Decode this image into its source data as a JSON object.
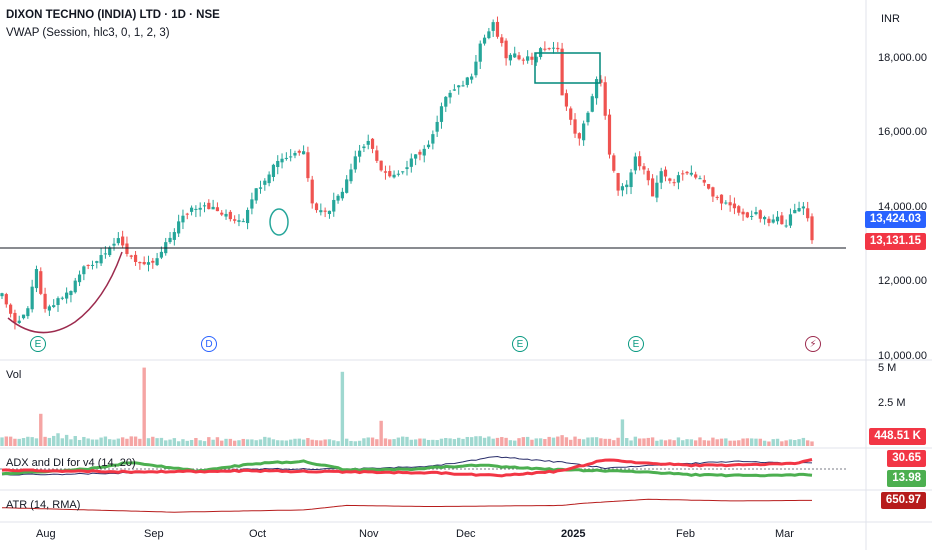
{
  "header": {
    "title": "DIXON TECHNO (INDIA) LTD · 1D · NSE",
    "indicator": "VWAP (Session, hlc3, 0, 1, 2, 3)",
    "currency": "INR"
  },
  "price_axis": {
    "ticks": [
      "18,000.00",
      "16,000.00",
      "14,000.00",
      "12,000.00",
      "10,000.00"
    ],
    "tick_values": [
      18000,
      16000,
      14000,
      12000,
      10000
    ],
    "current_price_label": "13,131.15",
    "vwap_label": "13,424.03",
    "up_color": "#26a69a",
    "down_color": "#ef5350"
  },
  "volume_pane": {
    "label": "Vol",
    "ticks": [
      "5 M",
      "2.5 M"
    ],
    "tick_values": [
      5000000,
      2500000
    ],
    "last_label": "448.51 K"
  },
  "adx_pane": {
    "label": "ADX and DI for v4 (14, 20)",
    "di_plus_label": "30.65",
    "di_minus_label": "13.98",
    "di_plus_color": "#f23645",
    "di_minus_color": "#4caf50",
    "adx_color": "#2a2e6a"
  },
  "atr_pane": {
    "label": "ATR (14, RMA)",
    "last_label": "650.97",
    "color": "#b71c1c"
  },
  "time_axis": {
    "labels": [
      "Aug",
      "Sep",
      "Oct",
      "Nov",
      "Dec",
      "2025",
      "Feb",
      "Mar"
    ]
  },
  "event_markers": [
    {
      "symbol": "E",
      "type": "earnings"
    },
    {
      "symbol": "D",
      "type": "dividend"
    },
    {
      "symbol": "E",
      "type": "earnings"
    },
    {
      "symbol": "E",
      "type": "earnings"
    },
    {
      "symbol": "⚡",
      "type": "split"
    }
  ],
  "chart_data": {
    "type": "candlestick",
    "title": "DIXON TECHNO (INDIA) LTD · 1D · NSE",
    "ylim": [
      10000,
      19300
    ],
    "support_level": 12920,
    "current_price": 13131.15,
    "vwap": 13424.03,
    "x_labels": [
      "Aug",
      "Sep",
      "Oct",
      "Nov",
      "Dec",
      "2025",
      "Feb",
      "Mar"
    ],
    "close_anchors": [
      [
        0,
        11700
      ],
      [
        3,
        10900
      ],
      [
        6,
        11300
      ],
      [
        8,
        12300
      ],
      [
        10,
        11200
      ],
      [
        13,
        11500
      ],
      [
        16,
        11800
      ],
      [
        19,
        12400
      ],
      [
        22,
        12600
      ],
      [
        25,
        13000
      ],
      [
        27,
        13100
      ],
      [
        29,
        12800
      ],
      [
        33,
        12400
      ],
      [
        36,
        12600
      ],
      [
        38,
        13000
      ],
      [
        41,
        13600
      ],
      [
        44,
        14000
      ],
      [
        47,
        14100
      ],
      [
        50,
        13900
      ],
      [
        53,
        13700
      ],
      [
        56,
        13700
      ],
      [
        58,
        14300
      ],
      [
        61,
        14800
      ],
      [
        64,
        15300
      ],
      [
        67,
        15400
      ],
      [
        70,
        15600
      ],
      [
        72,
        14100
      ],
      [
        74,
        13900
      ],
      [
        76,
        14000
      ],
      [
        79,
        14500
      ],
      [
        82,
        15400
      ],
      [
        85,
        15800
      ],
      [
        87,
        15200
      ],
      [
        90,
        14800
      ],
      [
        93,
        14900
      ],
      [
        95,
        15400
      ],
      [
        98,
        15500
      ],
      [
        101,
        16300
      ],
      [
        103,
        17000
      ],
      [
        106,
        17200
      ],
      [
        109,
        17600
      ],
      [
        111,
        18400
      ],
      [
        114,
        18900
      ],
      [
        115,
        18600
      ],
      [
        117,
        18050
      ],
      [
        120,
        18050
      ],
      [
        123,
        18000
      ],
      [
        126,
        18300
      ],
      [
        129,
        18200
      ],
      [
        130,
        17100
      ],
      [
        132,
        16300
      ],
      [
        134,
        15800
      ],
      [
        136,
        16600
      ],
      [
        138,
        17400
      ],
      [
        139,
        17300
      ],
      [
        141,
        15500
      ],
      [
        143,
        14400
      ],
      [
        145,
        14600
      ],
      [
        147,
        15300
      ],
      [
        149,
        15100
      ],
      [
        151,
        14300
      ],
      [
        153,
        14900
      ],
      [
        156,
        14700
      ],
      [
        159,
        15000
      ],
      [
        162,
        14800
      ],
      [
        165,
        14300
      ],
      [
        167,
        14200
      ],
      [
        169,
        14000
      ],
      [
        172,
        13800
      ],
      [
        175,
        13800
      ],
      [
        178,
        13600
      ],
      [
        180,
        13700
      ],
      [
        182,
        13600
      ],
      [
        184,
        13900
      ],
      [
        186,
        14100
      ],
      [
        188,
        13300
      ]
    ],
    "volume_anchors": [
      [
        0,
        0.6
      ],
      [
        10,
        0.8
      ],
      [
        20,
        0.5
      ],
      [
        30,
        0.6
      ],
      [
        40,
        0.45
      ],
      [
        50,
        0.5
      ],
      [
        60,
        0.5
      ],
      [
        70,
        0.55
      ],
      [
        80,
        0.45
      ],
      [
        90,
        0.55
      ],
      [
        100,
        0.5
      ],
      [
        110,
        0.55
      ],
      [
        120,
        0.5
      ],
      [
        130,
        0.6
      ],
      [
        140,
        0.55
      ],
      [
        150,
        0.5
      ],
      [
        160,
        0.5
      ],
      [
        170,
        0.45
      ],
      [
        180,
        0.45
      ],
      [
        188,
        0.45
      ]
    ],
    "volume_spikes": [
      [
        9,
        2.3
      ],
      [
        33,
        5.6
      ],
      [
        79,
        5.3
      ],
      [
        88,
        1.8
      ],
      [
        144,
        1.9
      ]
    ],
    "adx": [
      [
        0,
        14
      ],
      [
        20,
        15
      ],
      [
        40,
        17
      ],
      [
        60,
        20
      ],
      [
        80,
        20
      ],
      [
        100,
        23
      ],
      [
        115,
        33
      ],
      [
        130,
        27
      ],
      [
        140,
        21
      ],
      [
        155,
        25
      ],
      [
        170,
        28
      ],
      [
        185,
        26
      ],
      [
        188,
        27
      ]
    ],
    "di_plus": [
      [
        0,
        19
      ],
      [
        30,
        17
      ],
      [
        60,
        18
      ],
      [
        80,
        17
      ],
      [
        100,
        16
      ],
      [
        115,
        13
      ],
      [
        130,
        18
      ],
      [
        140,
        30
      ],
      [
        150,
        26
      ],
      [
        160,
        24
      ],
      [
        170,
        24
      ],
      [
        185,
        26
      ],
      [
        188,
        30.65
      ]
    ],
    "di_minus": [
      [
        0,
        15
      ],
      [
        20,
        20
      ],
      [
        30,
        27
      ],
      [
        45,
        18
      ],
      [
        60,
        26
      ],
      [
        70,
        28
      ],
      [
        80,
        19
      ],
      [
        95,
        20
      ],
      [
        110,
        24
      ],
      [
        130,
        19
      ],
      [
        145,
        18
      ],
      [
        160,
        14
      ],
      [
        175,
        13
      ],
      [
        188,
        13.98
      ]
    ],
    "atr": [
      [
        0,
        520
      ],
      [
        40,
        440
      ],
      [
        70,
        480
      ],
      [
        80,
        560
      ],
      [
        100,
        540
      ],
      [
        130,
        560
      ],
      [
        135,
        600
      ],
      [
        150,
        670
      ],
      [
        170,
        640
      ],
      [
        188,
        650.97
      ]
    ]
  }
}
